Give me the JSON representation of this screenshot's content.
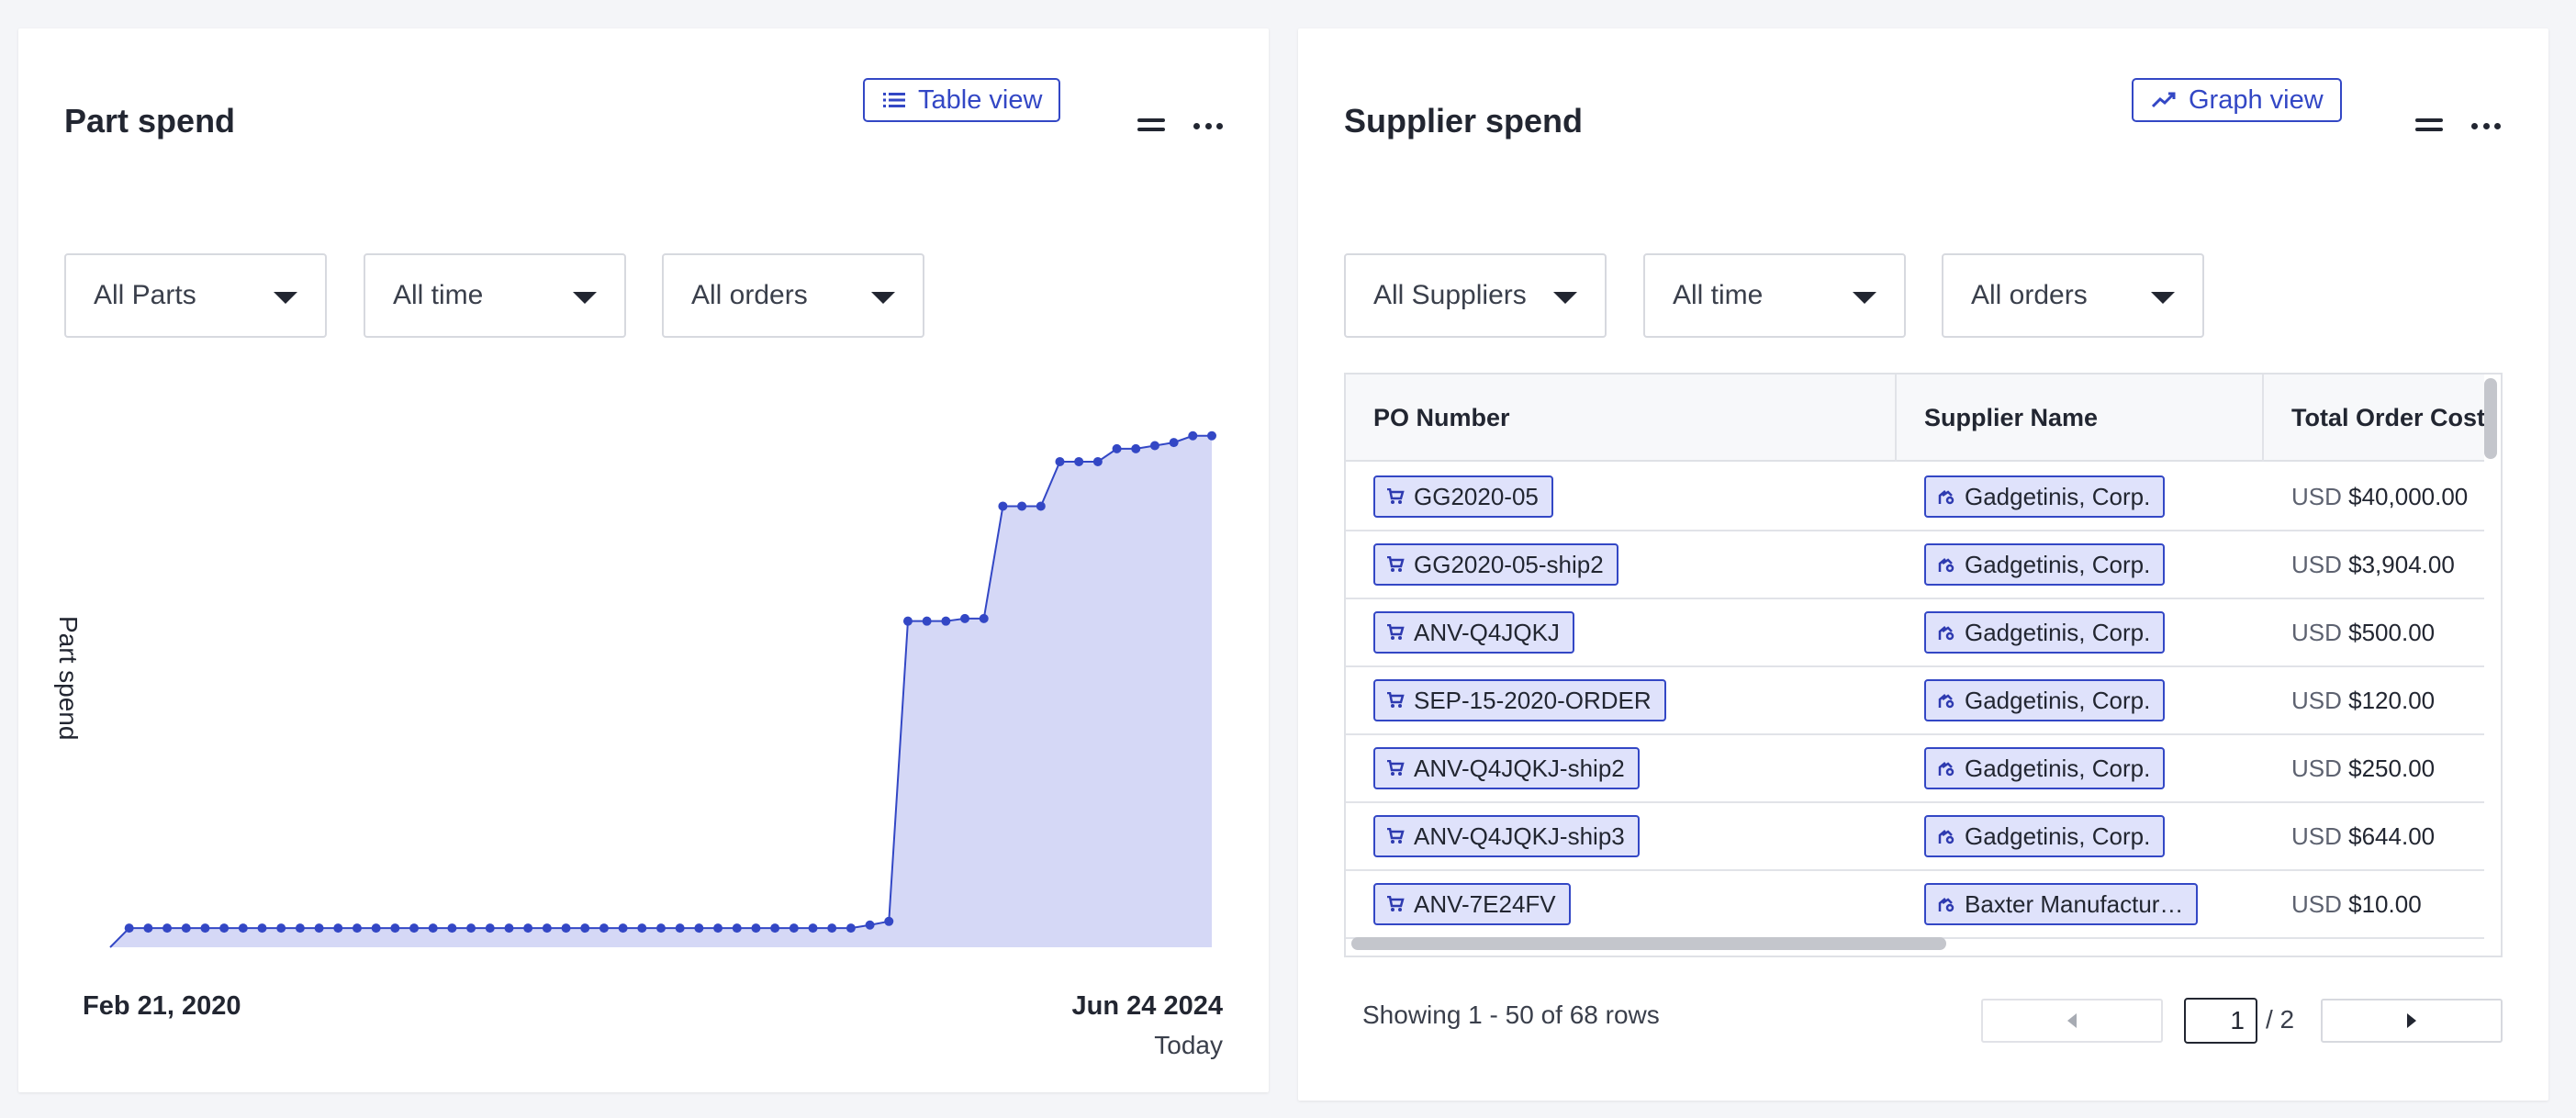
{
  "part_spend": {
    "title": "Part spend",
    "view_button": "Table view",
    "filters": [
      "All Parts",
      "All time",
      "All orders"
    ],
    "y_axis_label": "Part spend",
    "x_start_label": "Feb 21, 2020",
    "x_end_label": "Jun 24 2024",
    "x_end_sublabel": "Today"
  },
  "chart_data": {
    "type": "area",
    "title": "Part spend",
    "xlabel": "",
    "ylabel": "Part spend",
    "x_range": [
      "Feb 21, 2020",
      "Jun 24 2024"
    ],
    "ylim": [
      0,
      100
    ],
    "grid": false,
    "series": [
      {
        "name": "Part spend",
        "values": [
          0,
          3.7,
          3.7,
          3.7,
          3.7,
          3.7,
          3.7,
          3.7,
          3.7,
          3.7,
          3.7,
          3.7,
          3.7,
          3.7,
          3.7,
          3.7,
          3.7,
          3.7,
          3.7,
          3.7,
          3.7,
          3.7,
          3.7,
          3.7,
          3.7,
          3.7,
          3.7,
          3.7,
          3.7,
          3.7,
          3.7,
          3.7,
          3.7,
          3.7,
          3.7,
          3.7,
          3.7,
          3.7,
          3.7,
          3.7,
          4.3,
          5.0,
          63.0,
          63.0,
          63.0,
          63.5,
          63.5,
          85.2,
          85.2,
          85.2,
          93.8,
          93.8,
          93.8,
          96.3,
          96.3,
          96.9,
          97.5,
          98.8,
          98.8
        ]
      }
    ]
  },
  "supplier_spend": {
    "title": "Supplier spend",
    "view_button": "Graph view",
    "filters": [
      "All Suppliers",
      "All time",
      "All orders"
    ],
    "columns": [
      "PO Number",
      "Supplier Name",
      "Total Order Cost"
    ],
    "rows": [
      {
        "po": "GG2020-05",
        "supplier": "Gadgetinis, Corp.",
        "currency": "USD",
        "amount": "$40,000.00"
      },
      {
        "po": "GG2020-05-ship2",
        "supplier": "Gadgetinis, Corp.",
        "currency": "USD",
        "amount": "$3,904.00"
      },
      {
        "po": "ANV-Q4JQKJ",
        "supplier": "Gadgetinis, Corp.",
        "currency": "USD",
        "amount": "$500.00"
      },
      {
        "po": "SEP-15-2020-ORDER",
        "supplier": "Gadgetinis, Corp.",
        "currency": "USD",
        "amount": "$120.00"
      },
      {
        "po": "ANV-Q4JQKJ-ship2",
        "supplier": "Gadgetinis, Corp.",
        "currency": "USD",
        "amount": "$250.00"
      },
      {
        "po": "ANV-Q4JQKJ-ship3",
        "supplier": "Gadgetinis, Corp.",
        "currency": "USD",
        "amount": "$644.00"
      },
      {
        "po": "ANV-7E24FV",
        "supplier": "Baxter Manufactur…",
        "currency": "USD",
        "amount": "$10.00"
      }
    ],
    "pagination": {
      "showing": "Showing 1 - 50 of 68 rows",
      "current_page": "1",
      "total_pages": "/ 2"
    }
  },
  "colors": {
    "accent": "#3347c5",
    "chip_fill": "#dfe2fb",
    "area_fill": "#d5d8f6"
  }
}
